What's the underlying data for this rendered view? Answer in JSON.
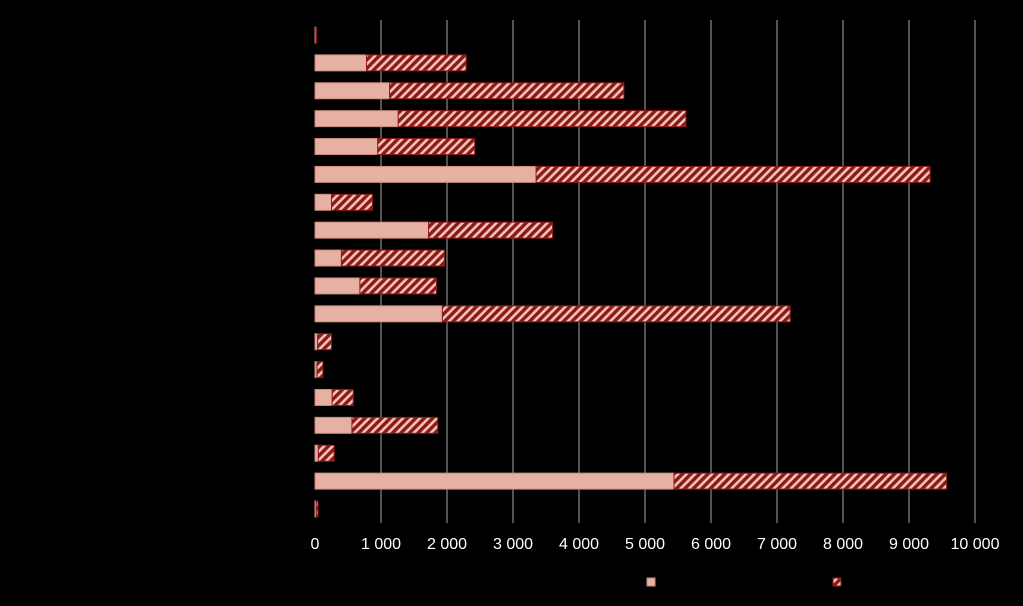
{
  "chart_data": {
    "type": "bar",
    "orientation": "horizontal",
    "stacked": true,
    "title": "",
    "xlabel": "",
    "ylabel": "",
    "categories": [
      "",
      "",
      "",
      "",
      "",
      "",
      "",
      "",
      "",
      "",
      "",
      "",
      "",
      "",
      "",
      "",
      "",
      ""
    ],
    "series": [
      {
        "fill": "solid",
        "values": [
          15,
          780,
          1130,
          1260,
          950,
          3350,
          250,
          1720,
          400,
          680,
          1930,
          40,
          30,
          260,
          560,
          50,
          5440,
          20
        ]
      },
      {
        "fill": "hatched",
        "values": [
          10,
          1510,
          3550,
          4360,
          1470,
          5970,
          620,
          1880,
          1560,
          1160,
          5270,
          210,
          90,
          320,
          1300,
          240,
          4130,
          25
        ]
      }
    ],
    "xlim": [
      0,
      10000
    ],
    "x_ticks": [
      0,
      1000,
      2000,
      3000,
      4000,
      5000,
      6000,
      7000,
      8000,
      9000,
      10000
    ],
    "x_tick_labels": [
      "0",
      "1 000",
      "2 000",
      "3 000",
      "4 000",
      "5 000",
      "6 000",
      "7 000",
      "8 000",
      "9 000",
      "10 000"
    ],
    "grid": true,
    "legend_position": "bottom",
    "colors": {
      "background": "#000000",
      "gridline": "#a6a6a6",
      "solid_fill": "#e6b0a3",
      "solid_stroke": "#c98a7e",
      "hatch_base": "#f2c4b6",
      "hatch_stripe": "#8b1a1a",
      "tick_label": "#ffffff"
    }
  }
}
